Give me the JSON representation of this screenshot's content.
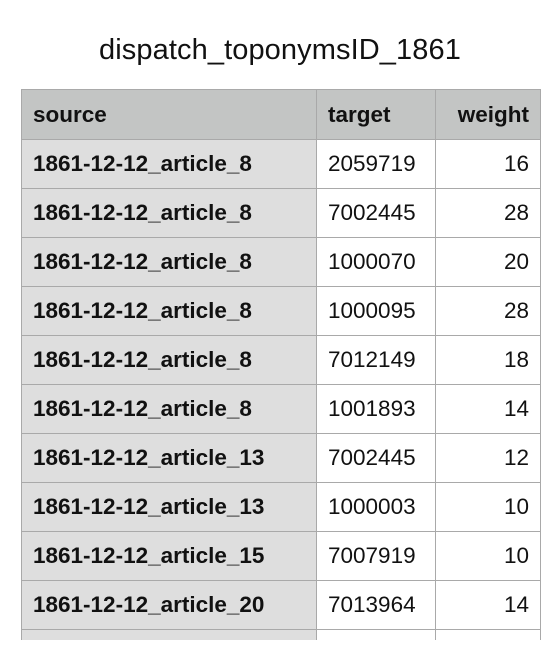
{
  "title": "dispatch_toponymsID_1861",
  "table": {
    "columns": [
      "source",
      "target",
      "weight"
    ],
    "rows": [
      {
        "source": "1861-12-12_article_8",
        "target": "2059719",
        "weight": "16"
      },
      {
        "source": "1861-12-12_article_8",
        "target": "7002445",
        "weight": "28"
      },
      {
        "source": "1861-12-12_article_8",
        "target": "1000070",
        "weight": "20"
      },
      {
        "source": "1861-12-12_article_8",
        "target": "1000095",
        "weight": "28"
      },
      {
        "source": "1861-12-12_article_8",
        "target": "7012149",
        "weight": "18"
      },
      {
        "source": "1861-12-12_article_8",
        "target": "1001893",
        "weight": "14"
      },
      {
        "source": "1861-12-12_article_13",
        "target": "7002445",
        "weight": "12"
      },
      {
        "source": "1861-12-12_article_13",
        "target": "1000003",
        "weight": "10"
      },
      {
        "source": "1861-12-12_article_15",
        "target": "7007919",
        "weight": "10"
      },
      {
        "source": "1861-12-12_article_20",
        "target": "7013964",
        "weight": "14"
      }
    ]
  }
}
